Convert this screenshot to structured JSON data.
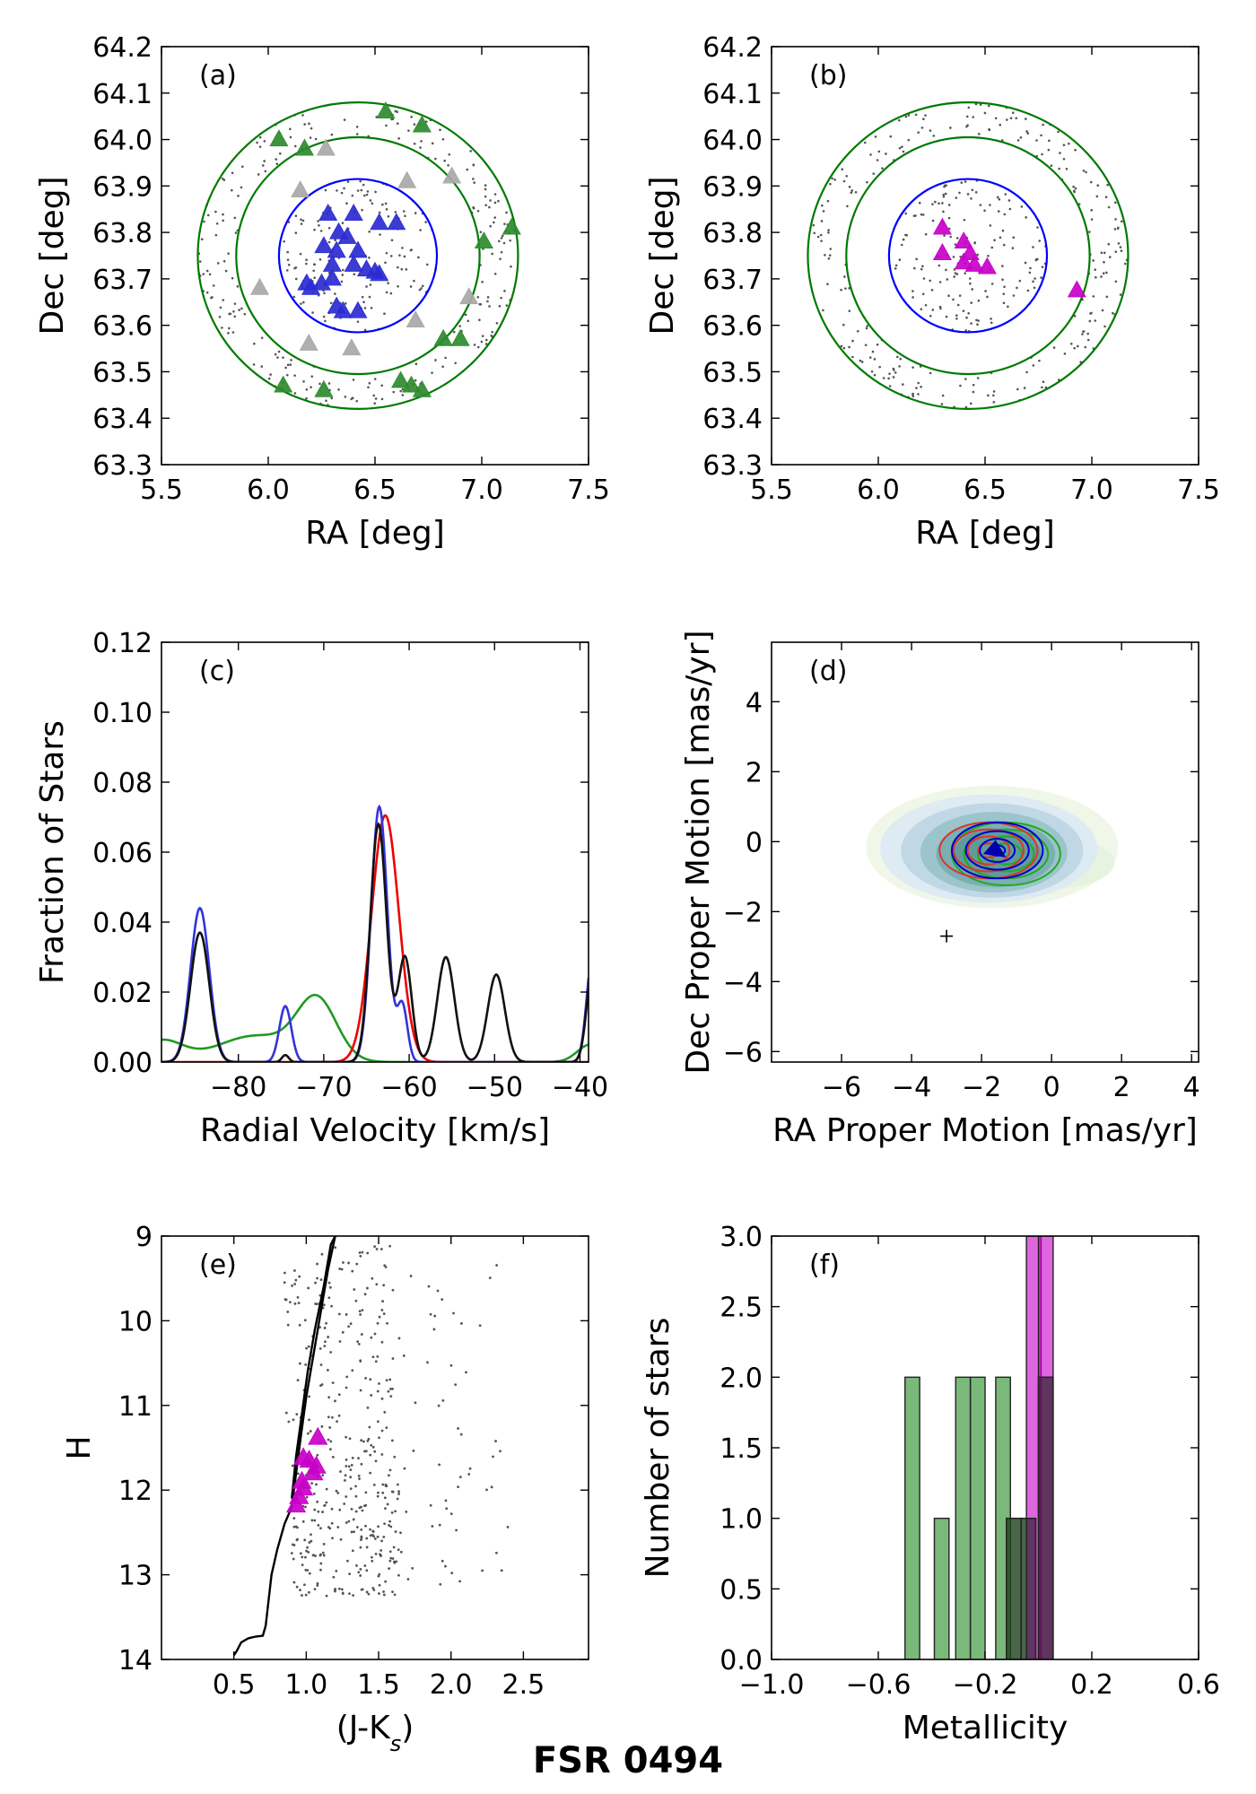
{
  "figure_title": "FSR 0494",
  "chart_data": [
    {
      "id": "a",
      "type": "scatter",
      "panel_label": "(a)",
      "xlabel": "RA [deg]",
      "ylabel": "Dec [deg]",
      "xlim": [
        5.5,
        7.5
      ],
      "ylim": [
        63.3,
        64.2
      ],
      "xticks": [
        "5.5",
        "6.0",
        "6.5",
        "7.0",
        "7.5"
      ],
      "yticks": [
        "63.3",
        "63.4",
        "63.5",
        "63.6",
        "63.7",
        "63.8",
        "63.9",
        "64.0",
        "64.1",
        "64.2"
      ],
      "circles": [
        {
          "center": [
            6.42,
            63.75
          ],
          "r_ra": 0.37,
          "r_dec": 0.165,
          "color": "#0000ff"
        },
        {
          "center": [
            6.42,
            63.75
          ],
          "r_ra": 0.57,
          "r_dec": 0.255,
          "color": "#007a00"
        },
        {
          "center": [
            6.42,
            63.75
          ],
          "r_ra": 0.75,
          "r_dec": 0.33,
          "color": "#007a00"
        }
      ],
      "field_stars": {
        "color": "#555555",
        "count": 400
      },
      "series": [
        {
          "name": "inner",
          "color": "#2b2bd1",
          "points": [
            [
              6.28,
              63.84
            ],
            [
              6.4,
              63.84
            ],
            [
              6.52,
              63.82
            ],
            [
              6.6,
              63.82
            ],
            [
              6.33,
              63.8
            ],
            [
              6.37,
              63.79
            ],
            [
              6.26,
              63.77
            ],
            [
              6.32,
              63.76
            ],
            [
              6.42,
              63.76
            ],
            [
              6.3,
              63.73
            ],
            [
              6.4,
              63.73
            ],
            [
              6.46,
              63.72
            ],
            [
              6.5,
              63.715
            ],
            [
              6.52,
              63.71
            ],
            [
              6.3,
              63.7
            ],
            [
              6.18,
              63.69
            ],
            [
              6.25,
              63.69
            ],
            [
              6.2,
              63.68
            ],
            [
              6.32,
              63.64
            ],
            [
              6.35,
              63.63
            ],
            [
              6.42,
              63.63
            ]
          ]
        },
        {
          "name": "ring",
          "color": "#2e8b2e",
          "points": [
            [
              6.55,
              64.06
            ],
            [
              6.72,
              64.03
            ],
            [
              6.05,
              64.0
            ],
            [
              6.17,
              63.98
            ],
            [
              7.14,
              63.81
            ],
            [
              7.01,
              63.78
            ],
            [
              6.9,
              63.57
            ],
            [
              6.82,
              63.57
            ],
            [
              6.62,
              63.48
            ],
            [
              6.67,
              63.47
            ],
            [
              6.72,
              63.46
            ],
            [
              6.07,
              63.47
            ],
            [
              6.26,
              63.46
            ]
          ]
        },
        {
          "name": "gray",
          "color": "#a8a8a8",
          "points": [
            [
              6.27,
              63.98
            ],
            [
              6.65,
              63.91
            ],
            [
              6.15,
              63.89
            ],
            [
              6.86,
              63.92
            ],
            [
              5.96,
              63.68
            ],
            [
              6.19,
              63.56
            ],
            [
              6.39,
              63.55
            ],
            [
              6.69,
              63.61
            ],
            [
              6.94,
              63.66
            ]
          ]
        }
      ]
    },
    {
      "id": "b",
      "type": "scatter",
      "panel_label": "(b)",
      "xlabel": "RA [deg]",
      "ylabel": "Dec [deg]",
      "xlim": [
        5.5,
        7.5
      ],
      "ylim": [
        63.3,
        64.2
      ],
      "xticks": [
        "5.5",
        "6.0",
        "6.5",
        "7.0",
        "7.5"
      ],
      "yticks": [
        "63.3",
        "63.4",
        "63.5",
        "63.6",
        "63.7",
        "63.8",
        "63.9",
        "64.0",
        "64.1",
        "64.2"
      ],
      "circles": [
        {
          "center": [
            6.42,
            63.75
          ],
          "r_ra": 0.37,
          "r_dec": 0.165,
          "color": "#0000ff"
        },
        {
          "center": [
            6.42,
            63.75
          ],
          "r_ra": 0.57,
          "r_dec": 0.255,
          "color": "#007a00"
        },
        {
          "center": [
            6.42,
            63.75
          ],
          "r_ra": 0.75,
          "r_dec": 0.33,
          "color": "#007a00"
        }
      ],
      "field_stars": {
        "color": "#555555",
        "count": 400
      },
      "series": [
        {
          "name": "members",
          "color": "#c800c8",
          "points": [
            [
              6.3,
              63.81
            ],
            [
              6.4,
              63.78
            ],
            [
              6.3,
              63.755
            ],
            [
              6.43,
              63.755
            ],
            [
              6.4,
              63.735
            ],
            [
              6.45,
              63.73
            ],
            [
              6.51,
              63.725
            ],
            [
              6.93,
              63.675
            ]
          ]
        }
      ]
    },
    {
      "id": "c",
      "type": "line",
      "panel_label": "(c)",
      "xlabel": "Radial Velocity [km/s]",
      "ylabel": "Fraction of Stars",
      "xlim": [
        -89,
        -39
      ],
      "ylim": [
        0,
        0.12
      ],
      "xticks": [
        "-80",
        "-70",
        "-60",
        "-50",
        "-40"
      ],
      "yticks": [
        "0.00",
        "0.02",
        "0.04",
        "0.06",
        "0.08",
        "0.10",
        "0.12"
      ],
      "series": [
        {
          "name": "blue",
          "color": "#3333dd",
          "components": [
            [
              -84.5,
              0.044,
              1.1
            ],
            [
              -74.5,
              0.016,
              0.7
            ],
            [
              -63.5,
              0.073,
              0.95
            ],
            [
              -60.8,
              0.016,
              0.6
            ],
            [
              -38.5,
              0.031,
              0.7
            ]
          ]
        },
        {
          "name": "black",
          "color": "#111111",
          "components": [
            [
              -84.5,
              0.037,
              1.1
            ],
            [
              -74.5,
              0.002,
              0.4
            ],
            [
              -63.6,
              0.068,
              0.95
            ],
            [
              -60.5,
              0.03,
              0.8
            ],
            [
              -55.7,
              0.03,
              1.0
            ],
            [
              -49.8,
              0.025,
              1.0
            ],
            [
              -38.5,
              0.027,
              0.7
            ]
          ]
        },
        {
          "name": "red",
          "color": "#ee0000",
          "components": [
            [
              -62.8,
              0.0705,
              1.6
            ]
          ]
        },
        {
          "name": "green",
          "color": "#229922",
          "components": [
            [
              -70.8,
              0.017,
              2.3
            ],
            [
              -78,
              0.0075,
              4.5
            ],
            [
              -89,
              0.006,
              2.5
            ],
            [
              -38.8,
              0.005,
              1.5
            ]
          ]
        }
      ]
    },
    {
      "id": "d",
      "type": "contour",
      "panel_label": "(d)",
      "xlabel": "RA Proper Motion [mas/yr]",
      "ylabel": "Dec Proper Motion [mas/yr]",
      "xlim": [
        -8,
        4.2
      ],
      "ylim": [
        -6.3,
        5.7
      ],
      "xticks": [
        "-6",
        "-4",
        "-2",
        "0",
        "2",
        "4"
      ],
      "yticks": [
        "-6",
        "-4",
        "-2",
        "0",
        "2",
        "4"
      ],
      "center": [
        -1.6,
        -0.25
      ],
      "errorbar_point": [
        -3.0,
        -2.7
      ],
      "contour_sets": [
        {
          "name": "green",
          "color": "#22aa22",
          "center": [
            -1.3,
            -0.35
          ],
          "radii": [
            [
              1.55,
              0.9
            ],
            [
              1.2,
              0.7
            ],
            [
              0.8,
              0.5
            ],
            [
              0.45,
              0.3
            ]
          ]
        },
        {
          "name": "red",
          "color": "#dd3333",
          "center": [
            -1.8,
            -0.25
          ],
          "radii": [
            [
              1.4,
              0.8
            ],
            [
              1.0,
              0.6
            ],
            [
              0.6,
              0.4
            ],
            [
              0.3,
              0.2
            ]
          ]
        },
        {
          "name": "blue",
          "color": "#0000cc",
          "center": [
            -1.55,
            -0.25
          ],
          "radii": [
            [
              1.3,
              0.8
            ],
            [
              0.9,
              0.55
            ],
            [
              0.5,
              0.33
            ],
            [
              0.22,
              0.15
            ]
          ]
        }
      ]
    },
    {
      "id": "e",
      "type": "scatter",
      "panel_label": "(e)",
      "xlabel": "(J-K",
      "xlabel_sub": "s",
      "xlabel_end": ")",
      "ylabel": "H",
      "xlim": [
        0.0,
        2.95
      ],
      "ylim": [
        14,
        9
      ],
      "xticks": [
        "0.5",
        "1.0",
        "1.5",
        "2.0",
        "2.5"
      ],
      "yticks": [
        "9",
        "10",
        "11",
        "12",
        "13",
        "14"
      ],
      "isochrone": [
        [
          0.5,
          13.95
        ],
        [
          0.52,
          13.9
        ],
        [
          0.55,
          13.8
        ],
        [
          0.6,
          13.75
        ],
        [
          0.65,
          13.73
        ],
        [
          0.7,
          13.72
        ],
        [
          0.72,
          13.6
        ],
        [
          0.74,
          13.3
        ],
        [
          0.76,
          13.0
        ],
        [
          0.8,
          12.7
        ],
        [
          0.85,
          12.4
        ],
        [
          0.9,
          12.2
        ],
        [
          0.93,
          11.8
        ],
        [
          0.96,
          11.4
        ],
        [
          1.0,
          10.9
        ],
        [
          1.05,
          10.4
        ],
        [
          1.1,
          9.9
        ],
        [
          1.15,
          9.4
        ],
        [
          1.2,
          9.0
        ]
      ],
      "isochrone_branch": [
        [
          0.9,
          12.1
        ],
        [
          0.93,
          11.6
        ],
        [
          0.97,
          11.1
        ],
        [
          1.01,
          10.6
        ],
        [
          1.06,
          10.1
        ],
        [
          1.12,
          9.6
        ],
        [
          1.17,
          9.1
        ],
        [
          1.2,
          9.0
        ]
      ],
      "field_stars": {
        "color": "#555555",
        "count": 450
      },
      "series": [
        {
          "name": "members",
          "color": "#c800c8",
          "points": [
            [
              1.08,
              11.38
            ],
            [
              1.02,
              11.65
            ],
            [
              0.98,
              11.62
            ],
            [
              1.07,
              11.72
            ],
            [
              1.05,
              11.8
            ],
            [
              0.97,
              11.9
            ],
            [
              0.98,
              11.98
            ],
            [
              0.95,
              12.08
            ],
            [
              0.93,
              12.18
            ]
          ]
        }
      ]
    },
    {
      "id": "f",
      "type": "histogram",
      "panel_label": "(f)",
      "xlabel": "Metallicity",
      "ylabel": "Number of stars",
      "xlim": [
        -1.0,
        0.6
      ],
      "ylim": [
        0,
        3.0
      ],
      "xticks": [
        "-1.0",
        "-0.6",
        "-0.2",
        "0.2",
        "0.6"
      ],
      "yticks": [
        "0.0",
        "0.5",
        "1.0",
        "1.5",
        "2.0",
        "2.5",
        "3.0"
      ],
      "bin_width": 0.055,
      "series": [
        {
          "name": "field",
          "color": "#228b22",
          "opacity": 0.6,
          "bins": [
            [
              -0.5,
              2
            ],
            [
              -0.39,
              1
            ],
            [
              -0.31,
              2
            ],
            [
              -0.255,
              2
            ],
            [
              -0.16,
              2
            ],
            [
              -0.12,
              1
            ],
            [
              -0.065,
              1
            ],
            [
              0.0,
              2
            ]
          ]
        },
        {
          "name": "members",
          "color": "#c800c8",
          "opacity": 0.6,
          "bins": [
            [
              -0.045,
              3
            ],
            [
              0.0,
              3
            ]
          ]
        },
        {
          "name": "overlap",
          "color": "#222222",
          "opacity": 0.55,
          "bins": [
            [
              -0.12,
              1
            ],
            [
              -0.065,
              1
            ],
            [
              0.0,
              2
            ]
          ]
        }
      ]
    }
  ]
}
